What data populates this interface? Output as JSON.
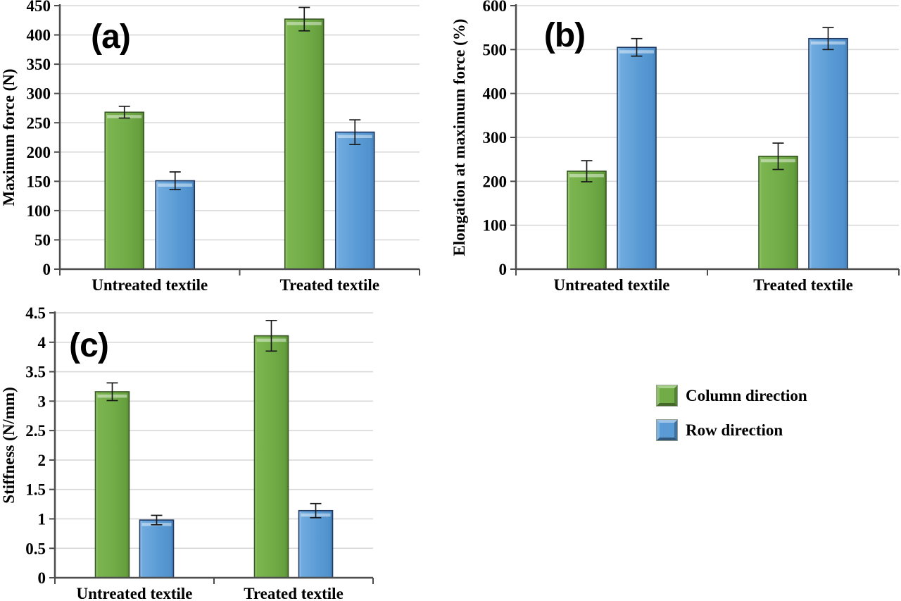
{
  "figure": {
    "background": "#FFFFFF",
    "description": "Three-panel bar chart figure comparing untreated and treated textile in column and row directions"
  },
  "colors": {
    "column_fill": "#71AC47",
    "column_edge": "#375623",
    "row_fill": "#5B9BD5",
    "row_edge": "#1F3864",
    "gridline": "#D9D9D9",
    "axis": "#4D4D4D",
    "error_bar": "#1A1A1A",
    "text": "#000000"
  },
  "legend": {
    "position": "bottom-right-quadrant",
    "entries": [
      {
        "label": "Column direction",
        "color": "#71AC47"
      },
      {
        "label": "Row direction",
        "color": "#5B9BD5"
      }
    ]
  },
  "chart_data": [
    {
      "id": "a",
      "type": "bar",
      "panel_label": "(a)",
      "title": "",
      "xlabel": "",
      "ylabel": "Maximum force (N)",
      "ylim": [
        0,
        450
      ],
      "yticks": [
        0,
        50,
        100,
        150,
        200,
        250,
        300,
        350,
        400,
        450
      ],
      "grid": "horizontal",
      "categories": [
        "Untreated textile",
        "Treated textile"
      ],
      "series": [
        {
          "name": "Column direction",
          "color": "#71AC47",
          "values": [
            268,
            427
          ],
          "errors": [
            10,
            20
          ]
        },
        {
          "name": "Row direction",
          "color": "#5B9BD5",
          "values": [
            151,
            234
          ],
          "errors": [
            15,
            21
          ]
        }
      ]
    },
    {
      "id": "b",
      "type": "bar",
      "panel_label": "(b)",
      "title": "",
      "xlabel": "",
      "ylabel": "Elongation at maximum force (%)",
      "ylim": [
        0,
        600
      ],
      "yticks": [
        0,
        100,
        200,
        300,
        400,
        500,
        600
      ],
      "grid": "horizontal",
      "categories": [
        "Untreated textile",
        "Treated textile"
      ],
      "series": [
        {
          "name": "Column direction",
          "color": "#71AC47",
          "values": [
            223,
            257
          ],
          "errors": [
            24,
            30
          ]
        },
        {
          "name": "Row direction",
          "color": "#5B9BD5",
          "values": [
            505,
            525
          ],
          "errors": [
            20,
            25
          ]
        }
      ]
    },
    {
      "id": "c",
      "type": "bar",
      "panel_label": "(c)",
      "title": "",
      "xlabel": "",
      "ylabel": "Stiffness (N/mm)",
      "ylim": [
        0,
        4.5
      ],
      "yticks": [
        0,
        0.5,
        1,
        1.5,
        2,
        2.5,
        3,
        3.5,
        4,
        4.5
      ],
      "grid": "horizontal",
      "categories": [
        "Untreated textile",
        "Treated textile"
      ],
      "series": [
        {
          "name": "Column direction",
          "color": "#71AC47",
          "values": [
            3.16,
            4.11
          ],
          "errors": [
            0.15,
            0.26
          ]
        },
        {
          "name": "Row direction",
          "color": "#5B9BD5",
          "values": [
            0.98,
            1.14
          ],
          "errors": [
            0.08,
            0.12
          ]
        }
      ]
    }
  ]
}
